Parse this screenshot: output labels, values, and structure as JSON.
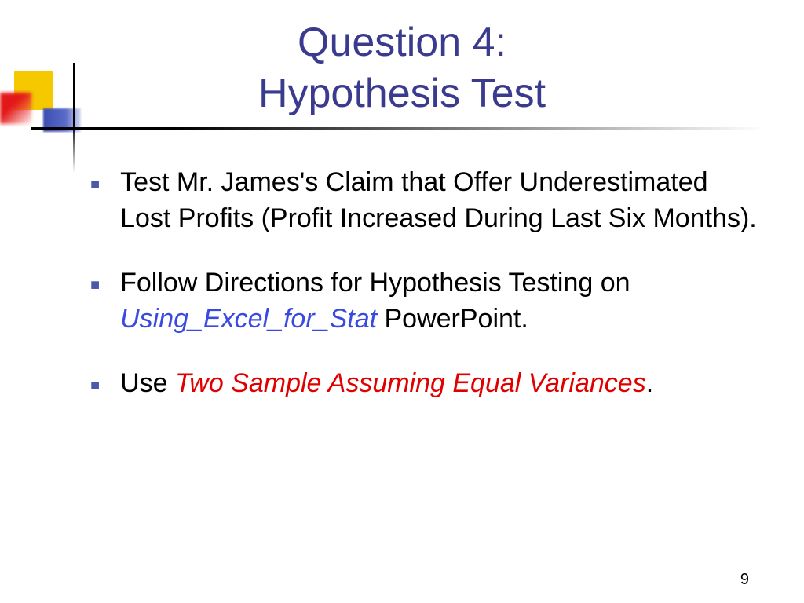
{
  "colors": {
    "title": "#3a3a8f",
    "bullet_marker": "#4a5aa8",
    "body_text": "#000000",
    "link": "#3a4ae0",
    "emphasis": "#e00000",
    "yellow": "#f5c800",
    "red": "#e31818",
    "blue": "#3b4db0",
    "background": "#ffffff"
  },
  "title": {
    "line1": "Question 4:",
    "line2": "Hypothesis Test",
    "fontsize": 52
  },
  "bullets": [
    {
      "segments": [
        {
          "text": "Test Mr. James's Claim that Offer Underestimated Lost Profits (Profit Increased During Last Six Months).",
          "style": "normal"
        }
      ]
    },
    {
      "segments": [
        {
          "text": "Follow Directions for Hypothesis Testing on ",
          "style": "normal"
        },
        {
          "text": "Using_Excel_for_Stat",
          "style": "link-italic"
        },
        {
          "text": " PowerPoint.",
          "style": "normal"
        }
      ]
    },
    {
      "segments": [
        {
          "text": "Use ",
          "style": "normal"
        },
        {
          "text": "Two Sample Assuming Equal Variances",
          "style": "emphasis-italic"
        },
        {
          "text": ".",
          "style": "normal"
        }
      ]
    }
  ],
  "body_fontsize": 34,
  "page_number": "9"
}
